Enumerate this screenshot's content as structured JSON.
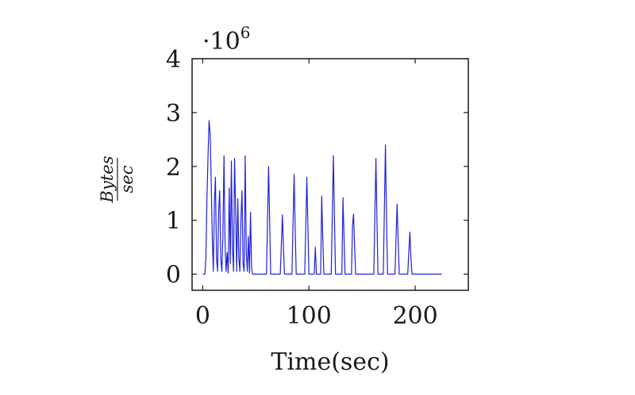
{
  "chart_data": {
    "type": "line",
    "title": "",
    "xlabel": "Time(sec)",
    "ylabel_numerator": "Bytes",
    "ylabel_denominator": "sec",
    "y_multiplier_base": "·10",
    "y_multiplier_exp": "6",
    "xlim": [
      -10,
      250
    ],
    "ylim": [
      -0.3,
      4
    ],
    "xticks": [
      0,
      100,
      200
    ],
    "yticks": [
      0,
      1,
      2,
      3,
      4
    ],
    "grid": false,
    "colors": {
      "line": "#2020dd",
      "axis": "#1a1a1a"
    },
    "series": [
      {
        "values_unit": "million bytes per second",
        "points": [
          [
            0,
            0
          ],
          [
            2,
            0
          ],
          [
            3,
            0.3
          ],
          [
            4,
            1.4
          ],
          [
            5,
            2.2
          ],
          [
            6,
            2.85
          ],
          [
            7,
            2.6
          ],
          [
            8,
            1.7
          ],
          [
            9,
            0.7
          ],
          [
            10,
            0.05
          ],
          [
            11,
            1.3
          ],
          [
            12,
            1.8
          ],
          [
            13,
            0.3
          ],
          [
            14,
            0.05
          ],
          [
            15,
            1.2
          ],
          [
            16,
            1.55
          ],
          [
            17,
            0.3
          ],
          [
            18,
            0.05
          ],
          [
            19,
            0.7
          ],
          [
            20,
            2.2
          ],
          [
            21,
            0.6
          ],
          [
            22,
            0.05
          ],
          [
            23,
            0.4
          ],
          [
            24,
            0.02
          ],
          [
            25,
            1.6
          ],
          [
            26,
            0.2
          ],
          [
            27,
            2.1
          ],
          [
            28,
            0.5
          ],
          [
            29,
            0.05
          ],
          [
            30,
            2.15
          ],
          [
            31,
            1.2
          ],
          [
            32,
            0.05
          ],
          [
            33,
            1.4
          ],
          [
            34,
            0.3
          ],
          [
            35,
            0.05
          ],
          [
            36,
            1.05
          ],
          [
            37,
            1.55
          ],
          [
            38,
            0.2
          ],
          [
            39,
            0.05
          ],
          [
            40,
            2.2
          ],
          [
            41,
            0.4
          ],
          [
            42,
            0.05
          ],
          [
            43,
            0.7
          ],
          [
            44,
            0.02
          ],
          [
            45,
            1.15
          ],
          [
            46,
            0.1
          ],
          [
            47,
            0
          ],
          [
            60,
            0
          ],
          [
            62,
            2.0
          ],
          [
            63,
            1.0
          ],
          [
            64,
            0
          ],
          [
            73,
            0
          ],
          [
            75,
            1.1
          ],
          [
            76,
            0.5
          ],
          [
            77,
            0
          ],
          [
            84,
            0
          ],
          [
            86,
            1.85
          ],
          [
            87,
            0.9
          ],
          [
            88,
            0
          ],
          [
            96,
            0
          ],
          [
            98,
            1.8
          ],
          [
            99,
            0.9
          ],
          [
            100,
            0
          ],
          [
            105,
            0
          ],
          [
            106,
            0.5
          ],
          [
            107,
            0
          ],
          [
            111,
            0
          ],
          [
            112,
            1.45
          ],
          [
            113,
            0.7
          ],
          [
            114,
            0
          ],
          [
            121,
            0
          ],
          [
            123,
            2.2
          ],
          [
            124,
            1.0
          ],
          [
            125,
            0
          ],
          [
            131,
            0
          ],
          [
            132,
            1.42
          ],
          [
            133,
            0.7
          ],
          [
            134,
            0
          ],
          [
            140,
            0
          ],
          [
            141,
            0.9
          ],
          [
            142,
            1.12
          ],
          [
            143,
            0.5
          ],
          [
            144,
            0
          ],
          [
            161,
            0
          ],
          [
            163,
            2.15
          ],
          [
            164,
            1.0
          ],
          [
            165,
            0
          ],
          [
            170,
            0
          ],
          [
            172,
            2.4
          ],
          [
            173,
            1.1
          ],
          [
            174,
            0
          ],
          [
            181,
            0
          ],
          [
            183,
            1.3
          ],
          [
            184,
            0.6
          ],
          [
            185,
            0
          ],
          [
            193,
            0
          ],
          [
            194,
            0.4
          ],
          [
            195,
            0.78
          ],
          [
            196,
            0.3
          ],
          [
            197,
            0
          ],
          [
            225,
            0
          ]
        ]
      }
    ]
  }
}
